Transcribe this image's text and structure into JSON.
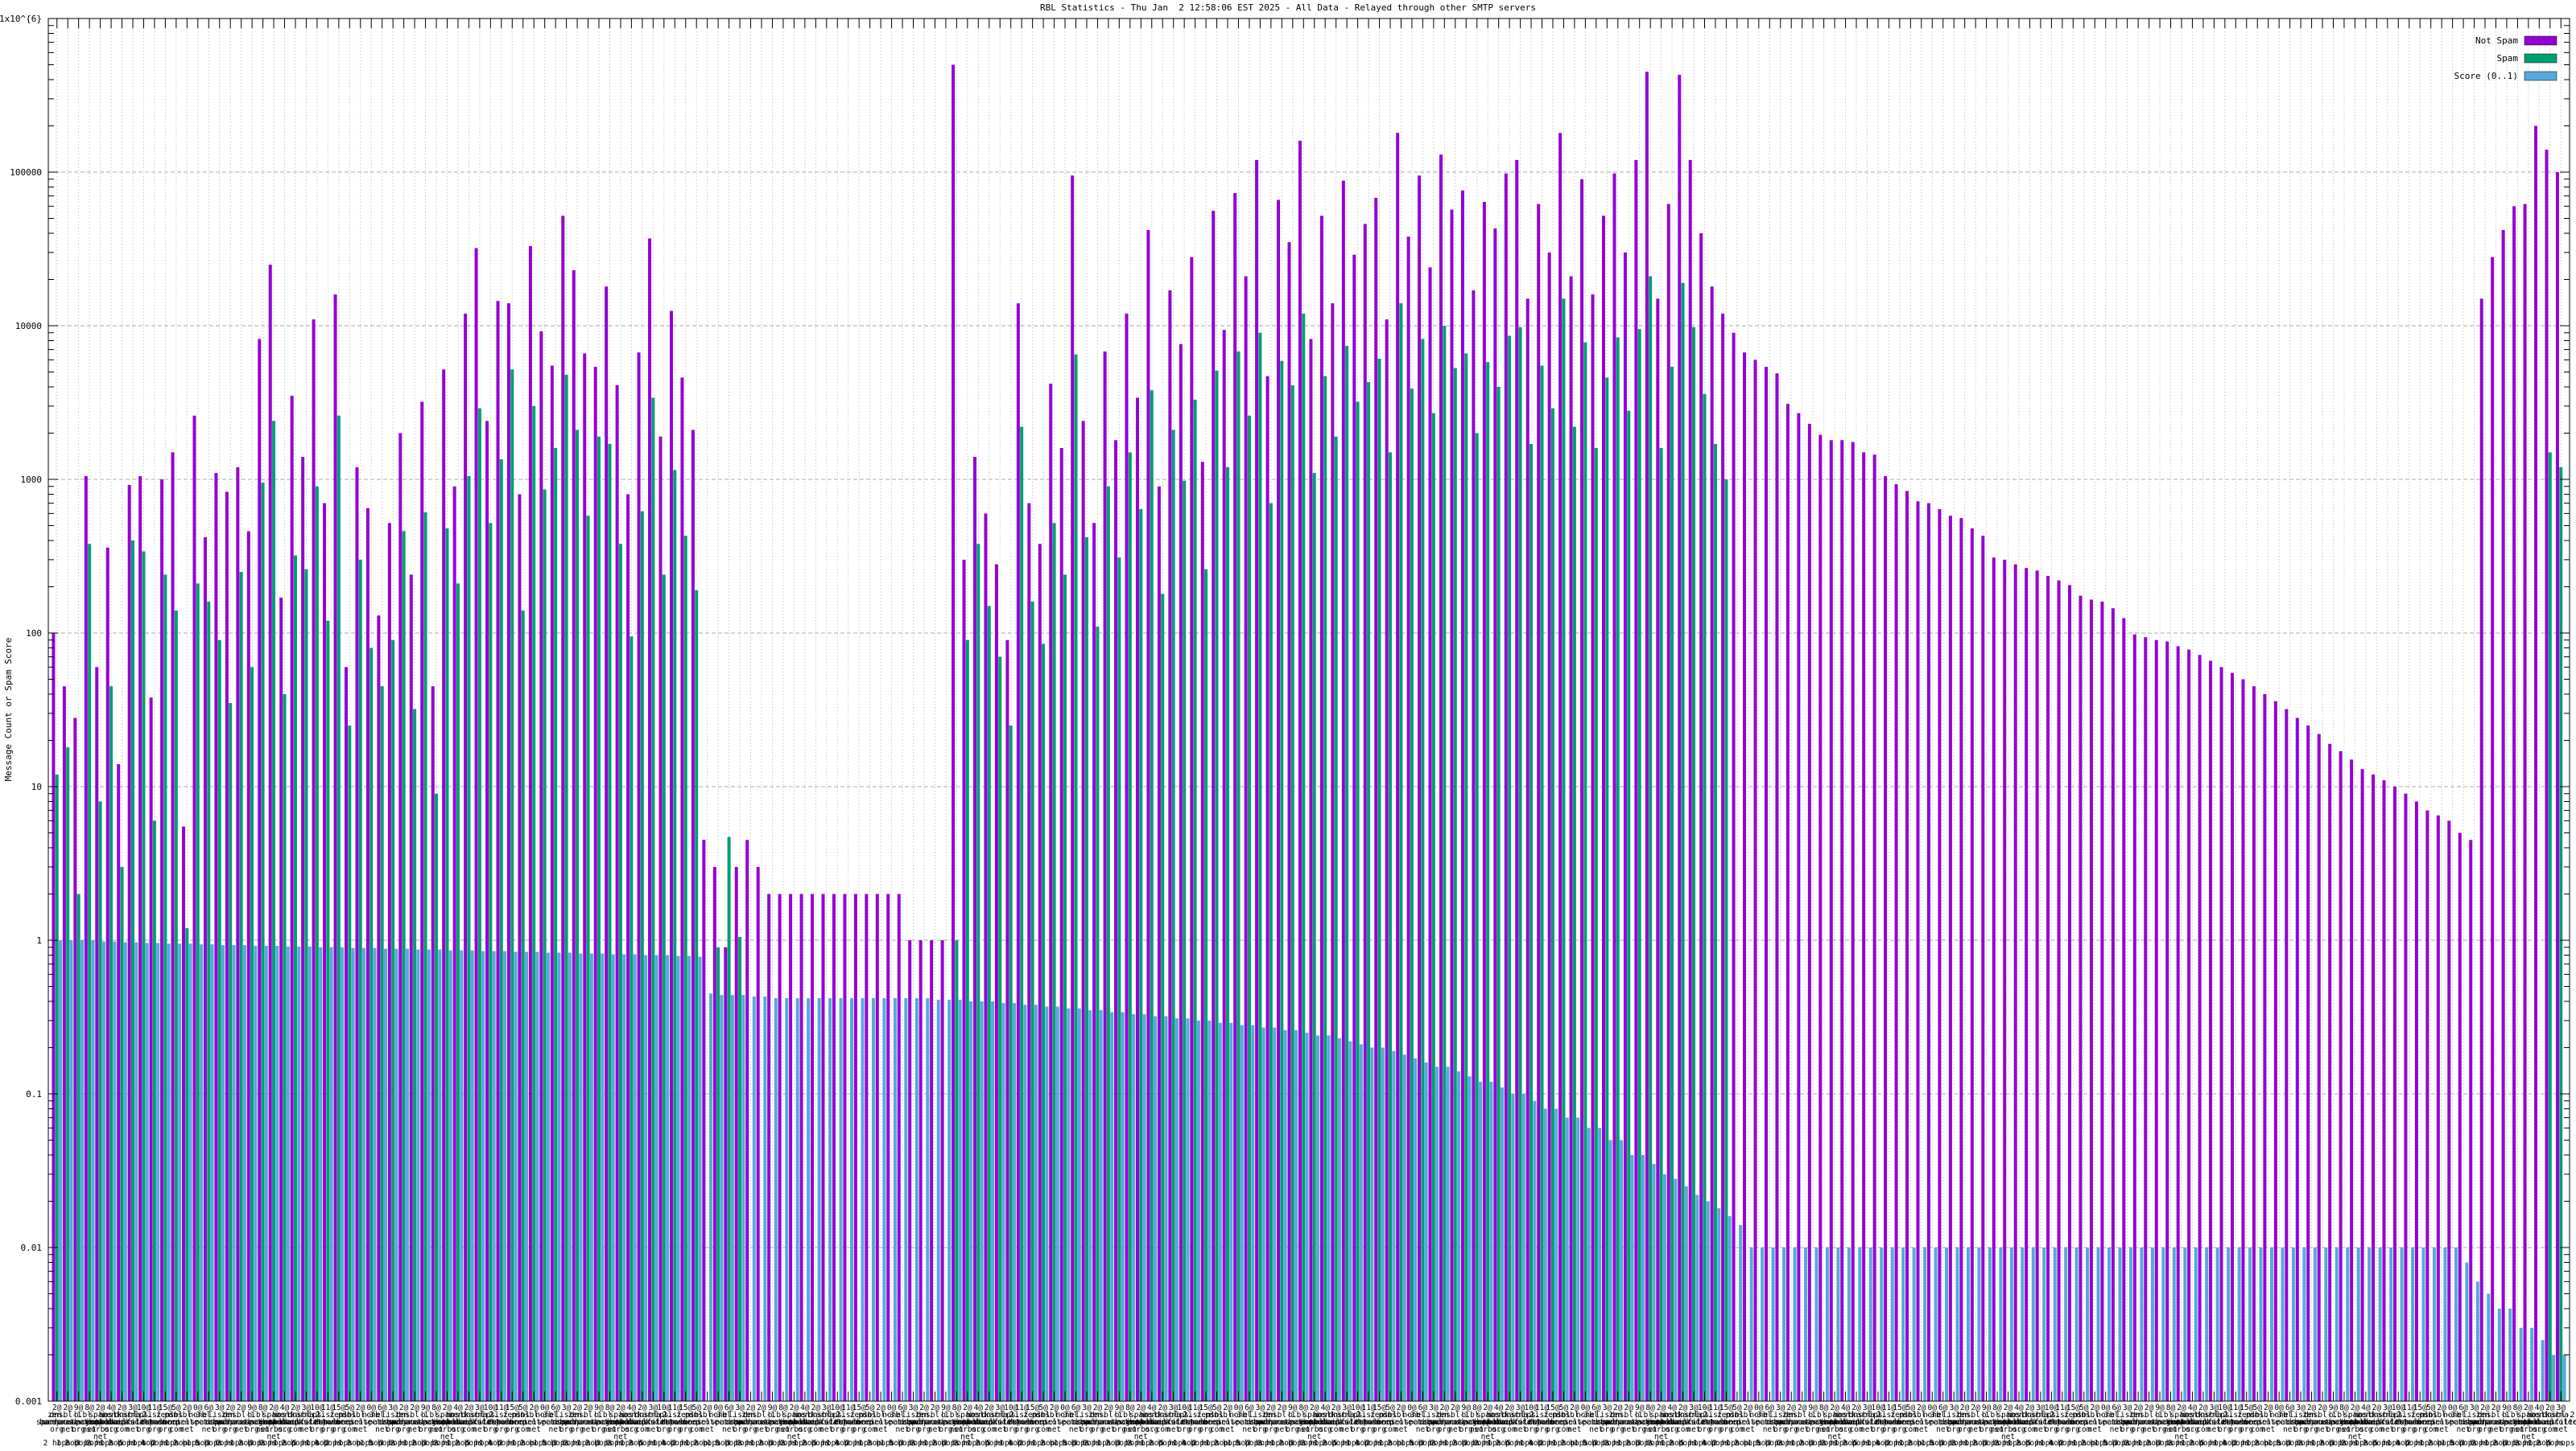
{
  "chart_data": {
    "type": "bar",
    "title": "RBL Statistics - Thu Jan  2 12:58:06 EST 2025 - All Data - Relayed through other SMTP servers",
    "ylabel": "Message Count or Spam Score",
    "xlabel": "",
    "y_scale": "log",
    "ylim": [
      0.001,
      1000000
    ],
    "grid": true,
    "legend_position": "top-right",
    "legend": [
      {
        "label": "Not Spam",
        "color": "#9400D3"
      },
      {
        "label": "Spam",
        "color": "#009E73"
      },
      {
        "label": "Score (0..1)",
        "color": "#56A8DB"
      }
    ],
    "colors": {
      "not_spam": "#9400D3",
      "spam": "#009E73",
      "score": "#56A8DB",
      "grid_h": "#ababab",
      "grid_v": "#c9c9c9",
      "border": "#000000"
    },
    "y_ticks": [
      {
        "label": "1x10^{6}",
        "value": 1000000
      },
      {
        "label": "100000",
        "value": 100000
      },
      {
        "label": "10000",
        "value": 10000
      },
      {
        "label": "1000",
        "value": 1000
      },
      {
        "label": "100",
        "value": 100
      },
      {
        "label": "10",
        "value": 10
      },
      {
        "label": "1",
        "value": 1
      },
      {
        "label": "0.1",
        "value": 0.1
      },
      {
        "label": "0.01",
        "value": 0.01
      },
      {
        "label": "0.001",
        "value": 0.001
      }
    ],
    "series_names": [
      "Not Spam",
      "Spam",
      "Score (0..1)"
    ],
    "bars_format": [
      "not_spam_count",
      "spam_count",
      "score_0_to_1"
    ],
    "bars": [
      [
        100,
        12,
        1
      ],
      [
        45,
        18,
        1
      ],
      [
        28,
        2,
        1
      ],
      [
        1050,
        380,
        1
      ],
      [
        60,
        8,
        0.98
      ],
      [
        360,
        45,
        0.98
      ],
      [
        14,
        3,
        0.97
      ],
      [
        920,
        400,
        0.97
      ],
      [
        1050,
        340,
        0.96
      ],
      [
        38,
        6,
        0.96
      ],
      [
        1000,
        240,
        0.95
      ],
      [
        1500,
        140,
        0.95
      ],
      [
        5.5,
        1.2,
        0.95
      ],
      [
        2600,
        210,
        0.94
      ],
      [
        420,
        160,
        0.94
      ],
      [
        1100,
        90,
        0.93
      ],
      [
        830,
        35,
        0.93
      ],
      [
        1200,
        250,
        0.93
      ],
      [
        460,
        60,
        0.92
      ],
      [
        8200,
        950,
        0.92
      ],
      [
        25000,
        2400,
        0.92
      ],
      [
        170,
        40,
        0.91
      ],
      [
        3500,
        320,
        0.91
      ],
      [
        1400,
        260,
        0.91
      ],
      [
        11000,
        900,
        0.9
      ],
      [
        700,
        120,
        0.9
      ],
      [
        16000,
        2600,
        0.9
      ],
      [
        60,
        25,
        0.89
      ],
      [
        1200,
        300,
        0.89
      ],
      [
        650,
        80,
        0.89
      ],
      [
        130,
        45,
        0.88
      ],
      [
        520,
        90,
        0.88
      ],
      [
        2000,
        460,
        0.88
      ],
      [
        240,
        32,
        0.87
      ],
      [
        3200,
        610,
        0.87
      ],
      [
        45,
        9,
        0.87
      ],
      [
        5200,
        480,
        0.86
      ],
      [
        900,
        210,
        0.86
      ],
      [
        12000,
        1050,
        0.86
      ],
      [
        32000,
        2900,
        0.85
      ],
      [
        2400,
        520,
        0.85
      ],
      [
        14500,
        1350,
        0.85
      ],
      [
        14000,
        5200,
        0.84
      ],
      [
        800,
        140,
        0.84
      ],
      [
        33000,
        3000,
        0.84
      ],
      [
        9200,
        860,
        0.83
      ],
      [
        5500,
        1600,
        0.83
      ],
      [
        52000,
        4800,
        0.83
      ],
      [
        23000,
        2100,
        0.82
      ],
      [
        6600,
        580,
        0.82
      ],
      [
        5400,
        1900,
        0.82
      ],
      [
        18000,
        1700,
        0.81
      ],
      [
        4100,
        380,
        0.81
      ],
      [
        800,
        95,
        0.81
      ],
      [
        6700,
        620,
        0.8
      ],
      [
        37000,
        3400,
        0.8
      ],
      [
        1900,
        240,
        0.8
      ],
      [
        12500,
        1150,
        0.79
      ],
      [
        4600,
        430,
        0.79
      ],
      [
        2100,
        190,
        0.78
      ],
      [
        4.5,
        0,
        0.45
      ],
      [
        3,
        0.9,
        0.44
      ],
      [
        0.9,
        4.7,
        0.44
      ],
      [
        3,
        1.05,
        0.44
      ],
      [
        4.5,
        0,
        0.43
      ],
      [
        3,
        0,
        0.43
      ],
      [
        2,
        0,
        0.42
      ],
      [
        2,
        0,
        0.42
      ],
      [
        2,
        0,
        0.42
      ],
      [
        2,
        0,
        0.42
      ],
      [
        2,
        0,
        0.42
      ],
      [
        2,
        0,
        0.42
      ],
      [
        2,
        0,
        0.42
      ],
      [
        2,
        0,
        0.42
      ],
      [
        2,
        0,
        0.42
      ],
      [
        2,
        0,
        0.42
      ],
      [
        2,
        0,
        0.42
      ],
      [
        2,
        0,
        0.42
      ],
      [
        2,
        0,
        0.42
      ],
      [
        1,
        0,
        0.42
      ],
      [
        1,
        0,
        0.42
      ],
      [
        1,
        0,
        0.41
      ],
      [
        1,
        0,
        0.41
      ],
      [
        500000,
        1,
        0.41
      ],
      [
        300,
        90,
        0.4
      ],
      [
        1400,
        380,
        0.4
      ],
      [
        600,
        150,
        0.4
      ],
      [
        280,
        70,
        0.39
      ],
      [
        90,
        25,
        0.39
      ],
      [
        14000,
        2200,
        0.38
      ],
      [
        700,
        160,
        0.38
      ],
      [
        380,
        85,
        0.37
      ],
      [
        4200,
        520,
        0.37
      ],
      [
        1600,
        240,
        0.36
      ],
      [
        95000,
        6500,
        0.36
      ],
      [
        2400,
        420,
        0.35
      ],
      [
        520,
        110,
        0.35
      ],
      [
        6800,
        900,
        0.34
      ],
      [
        1800,
        310,
        0.34
      ],
      [
        12000,
        1500,
        0.33
      ],
      [
        3400,
        640,
        0.33
      ],
      [
        42000,
        3800,
        0.32
      ],
      [
        900,
        180,
        0.32
      ],
      [
        17000,
        2100,
        0.31
      ],
      [
        7600,
        980,
        0.31
      ],
      [
        28000,
        3300,
        0.3
      ],
      [
        1300,
        260,
        0.3
      ],
      [
        56000,
        5100,
        0.29
      ],
      [
        9400,
        1200,
        0.29
      ],
      [
        73000,
        6800,
        0.28
      ],
      [
        21000,
        2600,
        0.28
      ],
      [
        120000,
        9000,
        0.27
      ],
      [
        4700,
        700,
        0.27
      ],
      [
        66000,
        5900,
        0.26
      ],
      [
        35000,
        4100,
        0.26
      ],
      [
        160000,
        12000,
        0.25
      ],
      [
        8200,
        1100,
        0.24
      ],
      [
        52000,
        4700,
        0.24
      ],
      [
        14000,
        1900,
        0.23
      ],
      [
        88000,
        7400,
        0.22
      ],
      [
        29000,
        3200,
        0.21
      ],
      [
        46000,
        4300,
        0.2
      ],
      [
        68000,
        6100,
        0.2
      ],
      [
        11000,
        1500,
        0.19
      ],
      [
        180000,
        14000,
        0.18
      ],
      [
        38000,
        3900,
        0.17
      ],
      [
        95000,
        8200,
        0.16
      ],
      [
        24000,
        2700,
        0.15
      ],
      [
        130000,
        10000,
        0.15
      ],
      [
        57000,
        5300,
        0.14
      ],
      [
        76000,
        6600,
        0.13
      ],
      [
        17000,
        2000,
        0.12
      ],
      [
        64000,
        5800,
        0.12
      ],
      [
        43000,
        4000,
        0.11
      ],
      [
        98000,
        8600,
        0.1
      ],
      [
        120000,
        9800,
        0.1
      ],
      [
        15000,
        1700,
        0.09
      ],
      [
        62000,
        5500,
        0.08
      ],
      [
        30000,
        2900,
        0.08
      ],
      [
        180000,
        15000,
        0.07
      ],
      [
        21000,
        2200,
        0.07
      ],
      [
        90000,
        7800,
        0.06
      ],
      [
        16000,
        1600,
        0.06
      ],
      [
        52000,
        4600,
        0.05
      ],
      [
        98000,
        8400,
        0.05
      ],
      [
        30000,
        2800,
        0.04
      ],
      [
        120000,
        9500,
        0.04
      ],
      [
        450000,
        21000,
        0.035
      ],
      [
        15000,
        1600,
        0.03
      ],
      [
        62000,
        5400,
        0.028
      ],
      [
        430000,
        19000,
        0.025
      ],
      [
        120000,
        9800,
        0.022
      ],
      [
        40000,
        3600,
        0.02
      ],
      [
        18000,
        1700,
        0.018
      ],
      [
        12000,
        1000,
        0.016
      ],
      [
        9000,
        0,
        0.014
      ],
      [
        6700,
        0,
        0.01
      ],
      [
        6000,
        0,
        0.01
      ],
      [
        5400,
        0,
        0.01
      ],
      [
        4900,
        0,
        0.01
      ],
      [
        3100,
        0,
        0.01
      ],
      [
        2700,
        0,
        0.01
      ],
      [
        2300,
        0,
        0.01
      ],
      [
        1950,
        0,
        0.01
      ],
      [
        1800,
        0,
        0.01
      ],
      [
        1800,
        0,
        0.01
      ],
      [
        1750,
        0,
        0.01
      ],
      [
        1500,
        0,
        0.01
      ],
      [
        1450,
        0,
        0.01
      ],
      [
        1050,
        0,
        0.01
      ],
      [
        930,
        0,
        0.01
      ],
      [
        840,
        0,
        0.01
      ],
      [
        720,
        0,
        0.01
      ],
      [
        700,
        0,
        0.01
      ],
      [
        640,
        0,
        0.01
      ],
      [
        580,
        0,
        0.01
      ],
      [
        560,
        0,
        0.01
      ],
      [
        480,
        0,
        0.01
      ],
      [
        430,
        0,
        0.01
      ],
      [
        310,
        0,
        0.01
      ],
      [
        300,
        0,
        0.01
      ],
      [
        280,
        0,
        0.01
      ],
      [
        265,
        0,
        0.01
      ],
      [
        255,
        0,
        0.01
      ],
      [
        235,
        0,
        0.01
      ],
      [
        220,
        0,
        0.01
      ],
      [
        205,
        0,
        0.01
      ],
      [
        175,
        0,
        0.01
      ],
      [
        165,
        0,
        0.01
      ],
      [
        160,
        0,
        0.01
      ],
      [
        145,
        0,
        0.01
      ],
      [
        125,
        0,
        0.01
      ],
      [
        98,
        0,
        0.01
      ],
      [
        94,
        0,
        0.01
      ],
      [
        90,
        0,
        0.01
      ],
      [
        88,
        0,
        0.01
      ],
      [
        82,
        0,
        0.01
      ],
      [
        78,
        0,
        0.01
      ],
      [
        72,
        0,
        0.01
      ],
      [
        66,
        0,
        0.01
      ],
      [
        60,
        0,
        0.01
      ],
      [
        55,
        0,
        0.01
      ],
      [
        50,
        0,
        0.01
      ],
      [
        45,
        0,
        0.01
      ],
      [
        40,
        0,
        0.01
      ],
      [
        36,
        0,
        0.01
      ],
      [
        32,
        0,
        0.01
      ],
      [
        28,
        0,
        0.01
      ],
      [
        25,
        0,
        0.01
      ],
      [
        22,
        0,
        0.01
      ],
      [
        19,
        0,
        0.01
      ],
      [
        17,
        0,
        0.01
      ],
      [
        15,
        0,
        0.01
      ],
      [
        13,
        0,
        0.01
      ],
      [
        12,
        0,
        0.01
      ],
      [
        11,
        0,
        0.01
      ],
      [
        10,
        0,
        0.01
      ],
      [
        9,
        0,
        0.01
      ],
      [
        8,
        0,
        0.01
      ],
      [
        7,
        0,
        0.01
      ],
      [
        6.5,
        0,
        0.01
      ],
      [
        6,
        0,
        0.01
      ],
      [
        5,
        0,
        0.008
      ],
      [
        4.5,
        0,
        0.006
      ],
      [
        15000,
        0,
        0.005
      ],
      [
        28000,
        0,
        0.004
      ],
      [
        42000,
        0,
        0.004
      ],
      [
        60000,
        0,
        0.003
      ],
      [
        62000,
        0,
        0.003
      ],
      [
        200000,
        0,
        0.0025
      ],
      [
        140000,
        1500,
        0.002
      ],
      [
        100000,
        1200,
        0.002
      ]
    ],
    "x_label_pool": [
      {
        "count": "2@",
        "domain": [
          "zen.",
          "spamhaus.",
          "org"
        ],
        "hops": "2 hops"
      },
      {
        "count": "2@",
        "domain": [
          "dnsbl-1.",
          "uceprotect.",
          "net"
        ],
        "hops": "1 hop"
      },
      {
        "count": "9@",
        "domain": [
          "b.",
          "barracudacentral.",
          "org"
        ],
        "hops": "2 hops"
      },
      {
        "count": "8@",
        "domain": [
          "bl.",
          "spamcop.",
          "net"
        ],
        "hops": "3 hops"
      },
      {
        "count": "2@",
        "domain": [
          "spam.",
          "dnsbl.",
          "sorbs.",
          "net"
        ],
        "hops": "2 hops"
      },
      {
        "count": "4@",
        "domain": [
          "zen.",
          "spamhaus.",
          "org"
        ],
        "hops": "1 hop"
      },
      {
        "count": "2@",
        "domain": [
          "hostkarma.",
          "junkemailfilter.",
          "com"
        ],
        "hops": "2 hops"
      },
      {
        "count": "3@",
        "domain": [
          "dnsbl-2.",
          "uceprotect.",
          "net"
        ],
        "hops": "5 hops"
      },
      {
        "count": "10@",
        "domain": [
          "ips.",
          "backscatterer.",
          "org"
        ],
        "hops": "1 hop"
      },
      {
        "count": "11@",
        "domain": [
          "list.",
          "dnswl.",
          "org"
        ],
        "hops": "4 hops"
      },
      {
        "count": "15@",
        "domain": [
          "zen.",
          "spamhaus.",
          "org"
        ],
        "hops": "2 hops"
      },
      {
        "count": "5@",
        "domain": [
          "psbl.",
          "surriel.",
          "com"
        ],
        "hops": "1 hop"
      },
      {
        "count": "2@",
        "domain": [
          "dnsbl-3.",
          "uceprotect.",
          "net"
        ],
        "hops": "2 hops"
      },
      {
        "count": "0@",
        "domain": [
          "none"
        ],
        "hops": "1 hop"
      },
      {
        "count": "6@",
        "domain": [
          "bl.",
          "spamcop.",
          "net"
        ],
        "hops": "5 hops"
      },
      {
        "count": "3@",
        "domain": [
          "list.",
          "dnswl.",
          "org"
        ],
        "hops": "3 hops"
      }
    ]
  }
}
